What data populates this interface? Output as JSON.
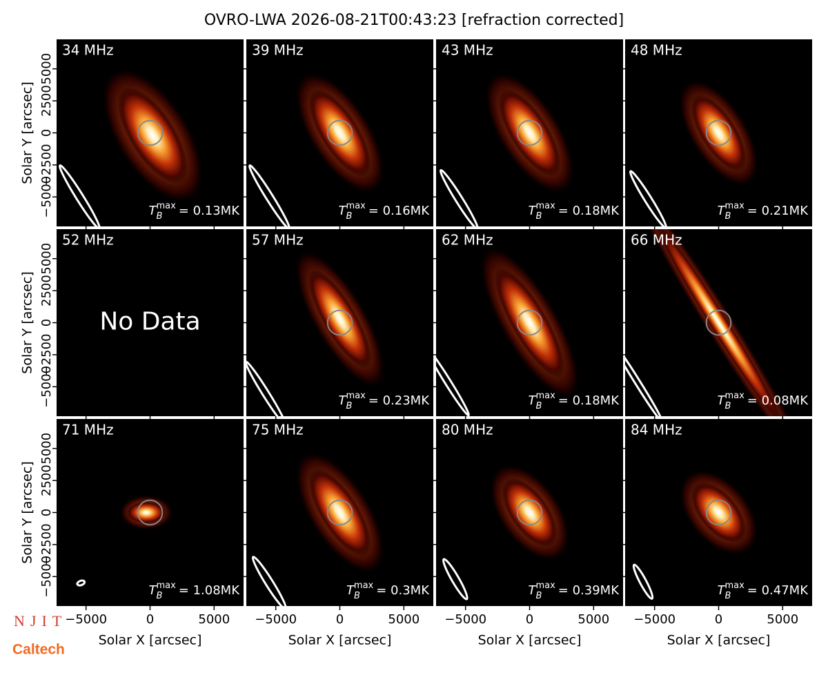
{
  "title": "OVRO-LWA 2026-08-21T00:43:23 [refraction corrected]",
  "logos": [
    "NJIT",
    "Caltech"
  ],
  "chart_data": [
    {
      "type": "image",
      "label": "34 MHz",
      "tb": {
        "base": "T",
        "sub": "B",
        "sup": "max",
        "text": "= 0.13MK"
      },
      "ylabel": "Solar Y [arcsec]",
      "xlim": [
        -7300,
        7300
      ],
      "ylim": [
        -7300,
        7300
      ],
      "xticks": [
        {
          "value": -5000,
          "label": "−5000"
        },
        0,
        5000
      ],
      "yticks": [
        {
          "value": -5000,
          "label": "−5000"
        },
        {
          "value": -2500,
          "label": "−2500"
        },
        0,
        2500,
        5000
      ]
    },
    {
      "type": "image",
      "label": "39 MHz",
      "tb": {
        "base": "T",
        "sub": "B",
        "sup": "max",
        "text": "= 0.16MK"
      },
      "xlim": [
        -7300,
        7300
      ],
      "ylim": [
        -7300,
        7300
      ],
      "xticks": [
        -5000,
        0,
        5000
      ],
      "yticks": [
        -5000,
        -2500,
        0,
        2500,
        5000
      ]
    },
    {
      "type": "image",
      "label": "43 MHz",
      "tb": {
        "base": "T",
        "sub": "B",
        "sup": "max",
        "text": "= 0.18MK"
      },
      "xlim": [
        -7300,
        7300
      ],
      "ylim": [
        -7300,
        7300
      ],
      "xticks": [
        -5000,
        0,
        5000
      ],
      "yticks": [
        -5000,
        -2500,
        0,
        2500,
        5000
      ]
    },
    {
      "type": "image",
      "label": "48 MHz",
      "tb": {
        "base": "T",
        "sub": "B",
        "sup": "max",
        "text": "= 0.21MK"
      },
      "xlim": [
        -7300,
        7300
      ],
      "ylim": [
        -7300,
        7300
      ],
      "xticks": [
        -5000,
        0,
        5000
      ],
      "yticks": [
        -5000,
        -2500,
        0,
        2500,
        5000
      ]
    },
    {
      "type": "image",
      "label": "52 MHz",
      "annotation": "No Data",
      "ylabel": "Solar Y [arcsec]",
      "xlim": [
        -7300,
        7300
      ],
      "ylim": [
        -7300,
        7300
      ],
      "xticks": [
        -5000,
        0,
        5000
      ],
      "yticks": [
        {
          "value": -5000,
          "label": "−5000"
        },
        {
          "value": -2500,
          "label": "−2500"
        },
        0,
        2500,
        5000
      ]
    },
    {
      "type": "image",
      "label": "57 MHz",
      "tb": {
        "base": "T",
        "sub": "B",
        "sup": "max",
        "text": "= 0.23MK"
      },
      "xlim": [
        -7300,
        7300
      ],
      "ylim": [
        -7300,
        7300
      ],
      "xticks": [
        -5000,
        0,
        5000
      ],
      "yticks": [
        -5000,
        -2500,
        0,
        2500,
        5000
      ]
    },
    {
      "type": "image",
      "label": "62 MHz",
      "tb": {
        "base": "T",
        "sub": "B",
        "sup": "max",
        "text": "= 0.18MK"
      },
      "xlim": [
        -7300,
        7300
      ],
      "ylim": [
        -7300,
        7300
      ],
      "xticks": [
        -5000,
        0,
        5000
      ],
      "yticks": [
        -5000,
        -2500,
        0,
        2500,
        5000
      ]
    },
    {
      "type": "image",
      "label": "66 MHz",
      "tb": {
        "base": "T",
        "sub": "B",
        "sup": "max",
        "text": "= 0.08MK"
      },
      "xlim": [
        -7300,
        7300
      ],
      "ylim": [
        -7300,
        7300
      ],
      "xticks": [
        -5000,
        0,
        5000
      ],
      "yticks": [
        -5000,
        -2500,
        0,
        2500,
        5000
      ]
    },
    {
      "type": "image",
      "label": "71 MHz",
      "tb": {
        "base": "T",
        "sub": "B",
        "sup": "max",
        "text": "= 1.08MK"
      },
      "xlabel": "Solar X [arcsec]",
      "ylabel": "Solar Y [arcsec]",
      "xlim": [
        -7300,
        7300
      ],
      "ylim": [
        -7300,
        7300
      ],
      "xticks": [
        {
          "value": -5000,
          "label": "−5000"
        },
        0,
        5000
      ],
      "yticks": [
        {
          "value": -5000,
          "label": "−5000"
        },
        {
          "value": -2500,
          "label": "−2500"
        },
        0,
        2500,
        5000
      ]
    },
    {
      "type": "image",
      "label": "75 MHz",
      "tb": {
        "base": "T",
        "sub": "B",
        "sup": "max",
        "text": "= 0.3MK"
      },
      "xlabel": "Solar X [arcsec]",
      "xlim": [
        -7300,
        7300
      ],
      "ylim": [
        -7300,
        7300
      ],
      "xticks": [
        {
          "value": -5000,
          "label": "−5000"
        },
        0,
        5000
      ],
      "yticks": [
        -5000,
        -2500,
        0,
        2500,
        5000
      ]
    },
    {
      "type": "image",
      "label": "80 MHz",
      "tb": {
        "base": "T",
        "sub": "B",
        "sup": "max",
        "text": "= 0.39MK"
      },
      "xlabel": "Solar X [arcsec]",
      "xlim": [
        -7300,
        7300
      ],
      "ylim": [
        -7300,
        7300
      ],
      "xticks": [
        {
          "value": -5000,
          "label": "−5000"
        },
        0,
        5000
      ],
      "yticks": [
        -5000,
        -2500,
        0,
        2500,
        5000
      ]
    },
    {
      "type": "image",
      "label": "84 MHz",
      "tb": {
        "base": "T",
        "sub": "B",
        "sup": "max",
        "text": "= 0.47MK"
      },
      "xlabel": "Solar X [arcsec]",
      "xlim": [
        -7300,
        7300
      ],
      "ylim": [
        -7300,
        7300
      ],
      "xticks": [
        {
          "value": -5000,
          "label": "−5000"
        },
        0,
        5000
      ],
      "yticks": [
        -5000,
        -2500,
        0,
        2500,
        5000
      ]
    }
  ]
}
